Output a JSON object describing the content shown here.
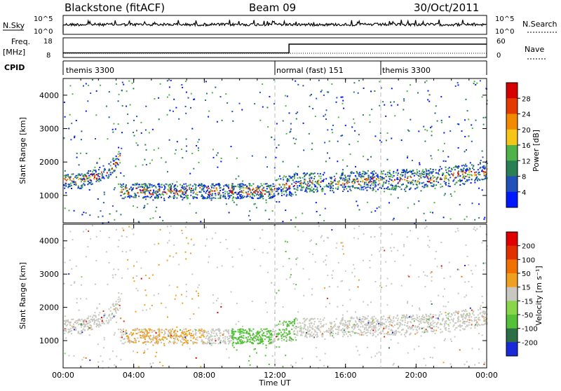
{
  "header": {
    "title": "Blackstone (fitACF)",
    "beam": "Beam 09",
    "date": "30/Oct/2011"
  },
  "sky_panel": {
    "left_label": "N.Sky",
    "right_label": "N.Search",
    "left_ticks": [
      "10^5",
      "10^0"
    ],
    "right_ticks": [
      "10^5",
      "10^0"
    ]
  },
  "freq_panel": {
    "left_label_1": "Freq.",
    "left_label_2": "[MHz]",
    "right_label": "Nave",
    "left_ticks": [
      "18",
      "8"
    ],
    "right_ticks": [
      "60",
      "0"
    ]
  },
  "cpid_panel": {
    "label": "CPID",
    "segments": [
      {
        "name": "themis 3300",
        "start_hour": 0,
        "end_hour": 12
      },
      {
        "name": "normal (fast) 151",
        "start_hour": 12,
        "end_hour": 18
      },
      {
        "name": "themis 3300",
        "start_hour": 18,
        "end_hour": 24
      }
    ]
  },
  "power_panel": {
    "ylabel": "Slant Range [km]",
    "colorbar_label": "Power [dB]",
    "colorbar_ticks": [
      "28",
      "24",
      "20",
      "16",
      "12",
      "8",
      "4"
    ],
    "colorbar_colors": [
      "#0018ff",
      "#2050b8",
      "#2a7f55",
      "#4fb34a",
      "#f5c518",
      "#f08a00",
      "#e23a00",
      "#d60000"
    ]
  },
  "velocity_panel": {
    "ylabel": "Slant Range [km]",
    "colorbar_label": "Velocity [m s⁻¹]",
    "colorbar_ticks": [
      "200",
      "100",
      "50",
      "15",
      "-15",
      "-50",
      "-100",
      "-200"
    ],
    "colorbar_colors": [
      "#1a2ad8",
      "#2c6e46",
      "#55c03a",
      "#8ad64a",
      "#c8c8c0",
      "#f0a020",
      "#f07000",
      "#e03000",
      "#e00000"
    ]
  },
  "x_axis": {
    "ticks": [
      "00:00",
      "04:00",
      "08:00",
      "12:00",
      "16:00",
      "20:00",
      "00:00"
    ],
    "label": "Time UT"
  },
  "chart_data": {
    "type": "heatmap",
    "x_range_hours": [
      0,
      24
    ],
    "y_range_km": [
      180,
      4500
    ],
    "y_ticks": [
      "1000",
      "2000",
      "3000",
      "4000"
    ],
    "frequency_mhz": [
      {
        "start_hour": 0,
        "end_hour": 12.8,
        "value": 10.3
      },
      {
        "start_hour": 12.8,
        "end_hour": 24,
        "value": 14.8
      }
    ],
    "cpid_boundaries_hours": [
      12,
      18
    ]
  }
}
